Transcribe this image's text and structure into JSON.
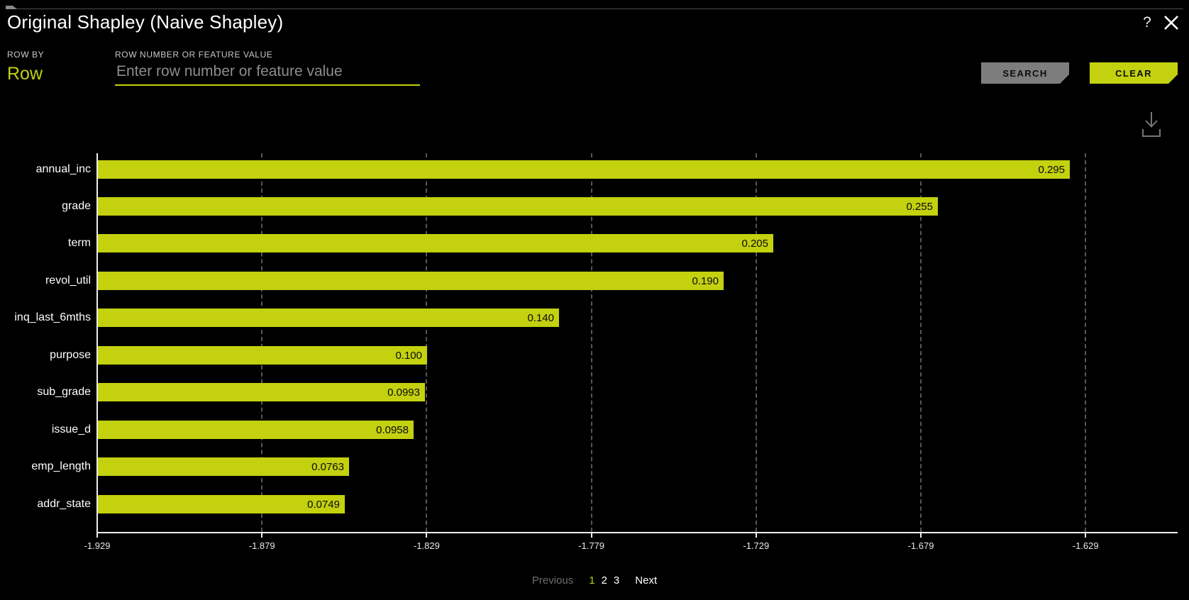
{
  "header": {
    "title": "Original Shapley (Naive Shapley)",
    "help_label": "?"
  },
  "controls": {
    "row_by_label": "ROW BY",
    "row_by_value": "Row",
    "field_label": "ROW NUMBER OR FEATURE VALUE",
    "placeholder": "Enter row number or feature value",
    "search_label": "SEARCH",
    "clear_label": "CLEAR"
  },
  "colors": {
    "accent": "#c3d10f",
    "search_button": "#7d7d7d",
    "background": "#000000",
    "grid": "#555555"
  },
  "chart_data": {
    "type": "bar",
    "orientation": "horizontal",
    "title": "",
    "xlabel": "",
    "ylabel": "",
    "categories": [
      "annual_inc",
      "grade",
      "term",
      "revol_util",
      "inq_last_6mths",
      "purpose",
      "sub_grade",
      "issue_d",
      "emp_length",
      "addr_state"
    ],
    "values": [
      0.295,
      0.255,
      0.205,
      0.19,
      0.14,
      0.1,
      0.0993,
      0.0958,
      0.0763,
      0.0749
    ],
    "value_labels": [
      "0.295",
      "0.255",
      "0.205",
      "0.190",
      "0.140",
      "0.100",
      "0.0993",
      "0.0958",
      "0.0763",
      "0.0749"
    ],
    "x_axis": {
      "tick_labels": [
        "-1.929",
        "-1.879",
        "-1.829",
        "-1.779",
        "-1.729",
        "-1.679",
        "-1.629"
      ],
      "start": -1.929,
      "step": 0.05
    },
    "grid": "vertical-dashed",
    "legend": "none",
    "bar_color": "#c3d10f"
  },
  "pagination": {
    "previous_label": "Previous",
    "pages": [
      "1",
      "2",
      "3"
    ],
    "current_page": "1",
    "next_label": "Next"
  }
}
